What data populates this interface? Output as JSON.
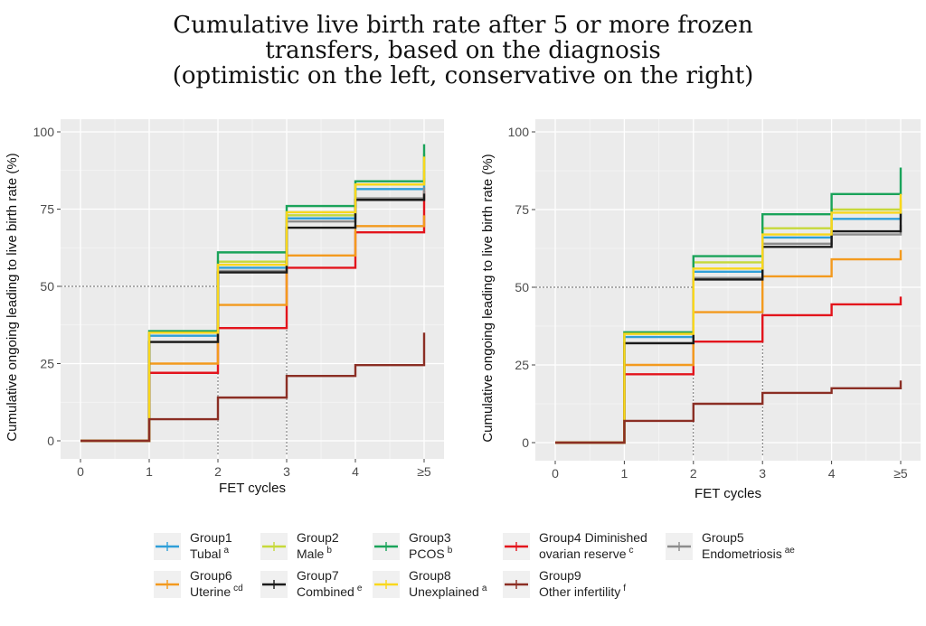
{
  "title_lines": [
    "Cumulative live birth rate after 5 or more frozen",
    "transfers, based on the diagnosis",
    "(optimistic on the left, conservative on the right)"
  ],
  "chart_data": [
    {
      "type": "line",
      "step": true,
      "panel": "left",
      "xlabel": "FET cycles",
      "ylabel": "Cumulative ongoing leading to live birth rate (%)",
      "x_ticks": [
        "0",
        "1",
        "2",
        "3",
        "4",
        "≥5"
      ],
      "y_ticks": [
        "0",
        "25",
        "50",
        "75",
        "100"
      ],
      "ylim": [
        0,
        100
      ],
      "reference_line_y": 50,
      "background": "#ebebeb",
      "series": [
        {
          "name": "Group1",
          "color": "#2f9fd8",
          "values": [
            0,
            34,
            56,
            72,
            81.5,
            85
          ]
        },
        {
          "name": "Group2",
          "color": "#c6d93a",
          "values": [
            0,
            35,
            58,
            73,
            83,
            93
          ]
        },
        {
          "name": "Group3",
          "color": "#1aa35a",
          "values": [
            0,
            35.5,
            61,
            76,
            84,
            96
          ]
        },
        {
          "name": "Group4",
          "color": "#e3141c",
          "values": [
            0,
            22,
            36.5,
            56,
            67.5,
            81
          ]
        },
        {
          "name": "Group5",
          "color": "#8c8c8c",
          "values": [
            0,
            32,
            55,
            71,
            78.5,
            82
          ]
        },
        {
          "name": "Group6",
          "color": "#f39a1e",
          "values": [
            0,
            25,
            44,
            60,
            69.5,
            73
          ]
        },
        {
          "name": "Group7",
          "color": "#1a1a1a",
          "values": [
            0,
            32,
            54.5,
            69,
            78,
            80
          ]
        },
        {
          "name": "Group8",
          "color": "#f9d71c",
          "values": [
            0,
            35,
            57,
            74,
            83,
            92
          ]
        },
        {
          "name": "Group9",
          "color": "#8b2e24",
          "values": [
            0,
            7,
            14,
            21,
            24.5,
            35
          ]
        }
      ]
    },
    {
      "type": "line",
      "step": true,
      "panel": "right",
      "xlabel": "FET cycles",
      "ylabel": "Cumulative ongoing leading to live birth rate (%)",
      "x_ticks": [
        "0",
        "1",
        "2",
        "3",
        "4",
        "≥5"
      ],
      "y_ticks": [
        "0",
        "25",
        "50",
        "75",
        "100"
      ],
      "ylim": [
        0,
        100
      ],
      "reference_line_y": 50,
      "background": "#ebebeb",
      "series": [
        {
          "name": "Group1",
          "color": "#2f9fd8",
          "values": [
            0,
            34,
            55,
            66,
            72,
            75
          ]
        },
        {
          "name": "Group2",
          "color": "#c6d93a",
          "values": [
            0,
            35,
            58,
            69,
            75,
            78
          ]
        },
        {
          "name": "Group3",
          "color": "#1aa35a",
          "values": [
            0,
            35.5,
            60,
            73.5,
            80,
            88.5
          ]
        },
        {
          "name": "Group4",
          "color": "#e3141c",
          "values": [
            0,
            22,
            32.5,
            41,
            44.5,
            47
          ]
        },
        {
          "name": "Group5",
          "color": "#8c8c8c",
          "values": [
            0,
            32,
            53,
            64,
            67,
            70
          ]
        },
        {
          "name": "Group6",
          "color": "#f39a1e",
          "values": [
            0,
            25,
            42,
            53.5,
            59,
            62
          ]
        },
        {
          "name": "Group7",
          "color": "#1a1a1a",
          "values": [
            0,
            32,
            52.5,
            63,
            68,
            74
          ]
        },
        {
          "name": "Group8",
          "color": "#f9d71c",
          "values": [
            0,
            35,
            56,
            67,
            74,
            80
          ]
        },
        {
          "name": "Group9",
          "color": "#8b2e24",
          "values": [
            0,
            7,
            12.5,
            16,
            17.5,
            20
          ]
        }
      ]
    }
  ],
  "legend": [
    {
      "line1": "Group1",
      "line2": "Tubal",
      "sup": "a",
      "color": "#2f9fd8"
    },
    {
      "line1": "Group2",
      "line2": "Male",
      "sup": "b",
      "color": "#c6d93a"
    },
    {
      "line1": "Group3",
      "line2": "PCOS",
      "sup": "b",
      "color": "#1aa35a"
    },
    {
      "line1": "Group4 Diminished",
      "line2": "ovarian reserve",
      "sup": "c",
      "color": "#e3141c"
    },
    {
      "line1": "Group5",
      "line2": "Endometriosis",
      "sup": "ae",
      "color": "#8c8c8c"
    },
    {
      "line1": "Group6",
      "line2": "Uterine",
      "sup": "cd",
      "color": "#f39a1e"
    },
    {
      "line1": "Group7",
      "line2": "Combined",
      "sup": "e",
      "color": "#1a1a1a"
    },
    {
      "line1": "Group8",
      "line2": "Unexplained",
      "sup": "a",
      "color": "#f9d71c"
    },
    {
      "line1": "Group9",
      "line2": "Other infertility",
      "sup": "f",
      "color": "#8b2e24"
    }
  ]
}
